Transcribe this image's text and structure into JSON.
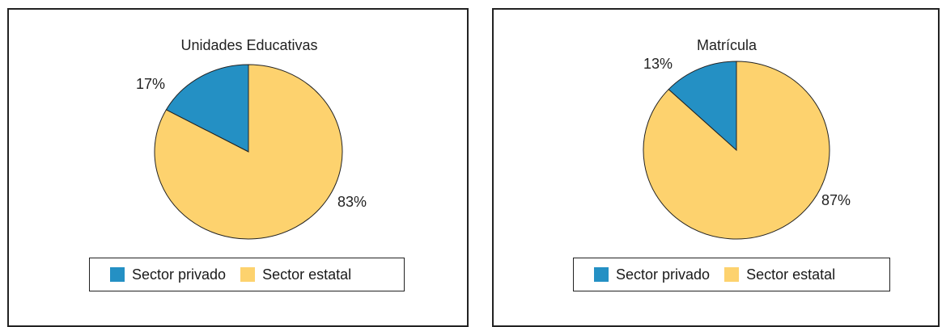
{
  "chart_data": [
    {
      "type": "pie",
      "title": "Unidades Educativas",
      "slices": [
        {
          "name": "Sector privado",
          "value": 17,
          "label": "17%",
          "color": "#2490c4"
        },
        {
          "name": "Sector estatal",
          "value": 83,
          "label": "83%",
          "color": "#fdd26e"
        }
      ],
      "legend": {
        "placement": "bottom",
        "items": [
          "Sector privado",
          "Sector estatal"
        ]
      }
    },
    {
      "type": "pie",
      "title": "Matrícula",
      "slices": [
        {
          "name": "Sector privado",
          "value": 13,
          "label": "13%",
          "color": "#2490c4"
        },
        {
          "name": "Sector estatal",
          "value": 87,
          "label": "87%",
          "color": "#fdd26e"
        }
      ],
      "legend": {
        "placement": "bottom",
        "items": [
          "Sector privado",
          "Sector estatal"
        ]
      }
    }
  ]
}
